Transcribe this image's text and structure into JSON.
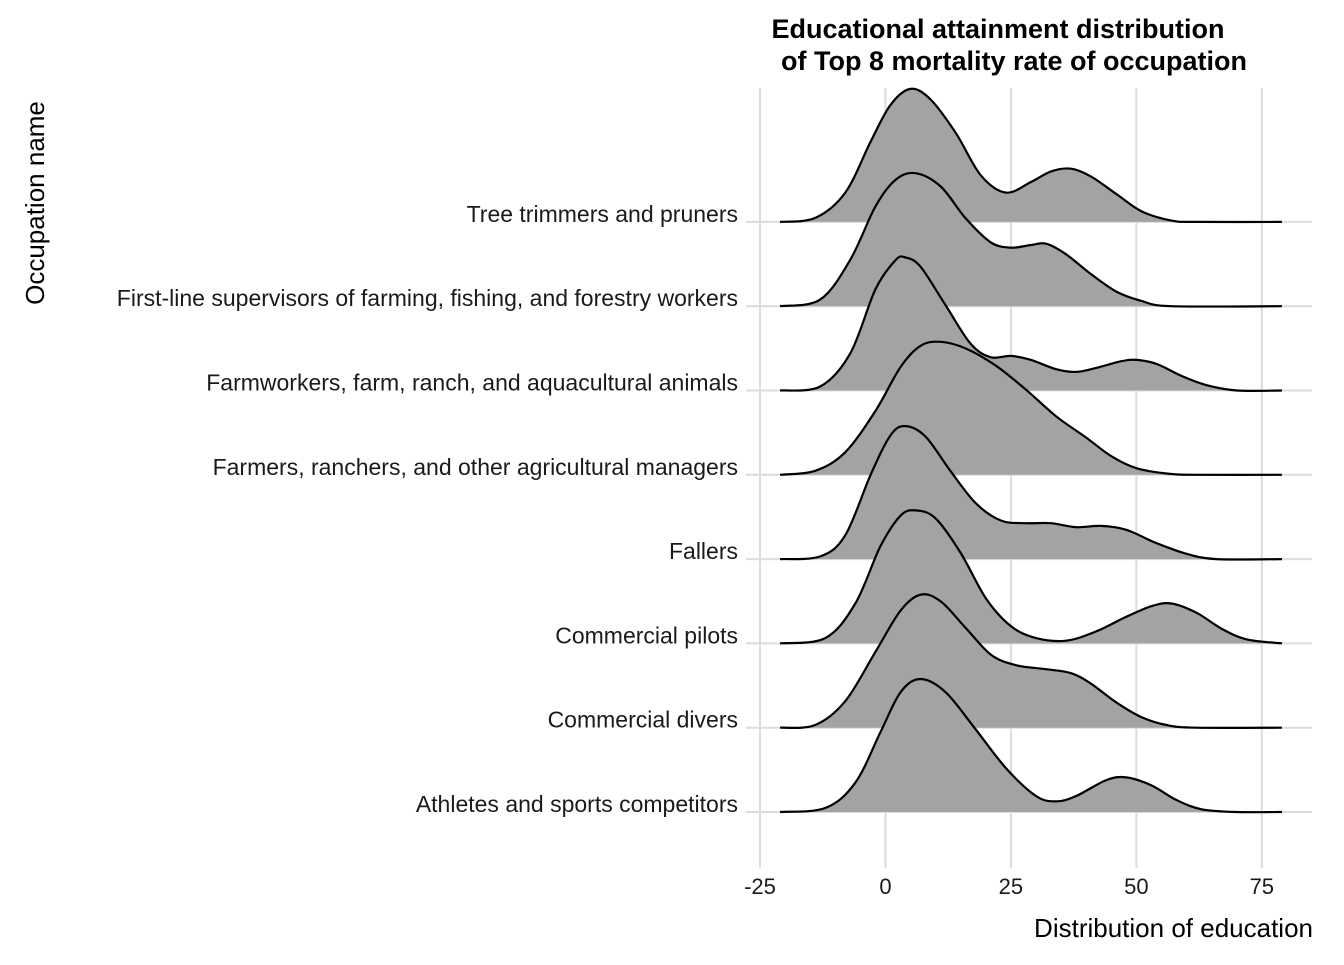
{
  "chart_data": {
    "type": "ridgeline",
    "title_lines": [
      "Educational attainment distribution",
      "of Top 8 mortality rate of occupation"
    ],
    "xlabel": "Distribution of education",
    "ylabel": "Occupation name",
    "xlim": [
      -25,
      85
    ],
    "x_ticks": [
      -25,
      0,
      25,
      50,
      75
    ],
    "x_tick_labels": [
      "-25",
      "0",
      "25",
      "50",
      "75"
    ],
    "density_range": [
      -21,
      79
    ],
    "fill_color": "#a3a3a3",
    "line_color": "#000000",
    "grid": true,
    "categories": [
      "Athletes and sports competitors",
      "Commercial divers",
      "Commercial pilots",
      "Fallers",
      "Farmers, ranchers, and other agricultural managers",
      "Farmworkers, farm, ranch, and aquacultural animals",
      "First-line supervisors of farming, fishing, and forestry workers",
      "Tree trimmers and pruners"
    ],
    "series": [
      {
        "category": "Athletes and sports competitors",
        "density_points": [
          [
            -21,
            0
          ],
          [
            -12,
            0.03
          ],
          [
            -6,
            0.22
          ],
          [
            -1,
            0.6
          ],
          [
            3,
            0.9
          ],
          [
            7,
            1.0
          ],
          [
            12,
            0.9
          ],
          [
            18,
            0.62
          ],
          [
            24,
            0.33
          ],
          [
            30,
            0.12
          ],
          [
            34,
            0.08
          ],
          [
            38,
            0.12
          ],
          [
            44,
            0.24
          ],
          [
            48,
            0.26
          ],
          [
            53,
            0.2
          ],
          [
            58,
            0.09
          ],
          [
            63,
            0.02
          ],
          [
            70,
            0
          ],
          [
            79,
            0
          ]
        ]
      },
      {
        "category": "Commercial divers",
        "density_points": [
          [
            -21,
            0
          ],
          [
            -14,
            0.02
          ],
          [
            -8,
            0.2
          ],
          [
            -2,
            0.57
          ],
          [
            3,
            0.88
          ],
          [
            7,
            1.0
          ],
          [
            11,
            0.95
          ],
          [
            16,
            0.75
          ],
          [
            21,
            0.55
          ],
          [
            26,
            0.47
          ],
          [
            32,
            0.44
          ],
          [
            37,
            0.41
          ],
          [
            41,
            0.33
          ],
          [
            46,
            0.19
          ],
          [
            51,
            0.08
          ],
          [
            56,
            0.02
          ],
          [
            62,
            0
          ],
          [
            79,
            0
          ]
        ]
      },
      {
        "category": "Commercial pilots",
        "density_points": [
          [
            -21,
            0
          ],
          [
            -12,
            0.04
          ],
          [
            -6,
            0.3
          ],
          [
            -1,
            0.73
          ],
          [
            3,
            0.96
          ],
          [
            6,
            1.0
          ],
          [
            10,
            0.94
          ],
          [
            15,
            0.68
          ],
          [
            20,
            0.34
          ],
          [
            25,
            0.13
          ],
          [
            30,
            0.04
          ],
          [
            36,
            0.02
          ],
          [
            42,
            0.09
          ],
          [
            48,
            0.2
          ],
          [
            53,
            0.28
          ],
          [
            57,
            0.3
          ],
          [
            62,
            0.23
          ],
          [
            67,
            0.11
          ],
          [
            72,
            0.03
          ],
          [
            79,
            0
          ]
        ]
      },
      {
        "category": "Fallers",
        "density_points": [
          [
            -21,
            0
          ],
          [
            -13,
            0.02
          ],
          [
            -8,
            0.18
          ],
          [
            -3,
            0.63
          ],
          [
            1,
            0.93
          ],
          [
            4,
            1.0
          ],
          [
            8,
            0.92
          ],
          [
            13,
            0.66
          ],
          [
            18,
            0.42
          ],
          [
            23,
            0.29
          ],
          [
            28,
            0.27
          ],
          [
            33,
            0.27
          ],
          [
            38,
            0.24
          ],
          [
            43,
            0.25
          ],
          [
            48,
            0.22
          ],
          [
            54,
            0.12
          ],
          [
            60,
            0.04
          ],
          [
            66,
            0
          ],
          [
            79,
            0
          ]
        ]
      },
      {
        "category": "Farmers, ranchers, and other agricultural managers",
        "density_points": [
          [
            -21,
            0
          ],
          [
            -14,
            0.03
          ],
          [
            -8,
            0.17
          ],
          [
            -2,
            0.48
          ],
          [
            3,
            0.81
          ],
          [
            7,
            0.97
          ],
          [
            11,
            1.0
          ],
          [
            16,
            0.95
          ],
          [
            22,
            0.82
          ],
          [
            28,
            0.64
          ],
          [
            34,
            0.44
          ],
          [
            40,
            0.28
          ],
          [
            45,
            0.14
          ],
          [
            50,
            0.05
          ],
          [
            56,
            0.01
          ],
          [
            62,
            0
          ],
          [
            79,
            0
          ]
        ]
      },
      {
        "category": "Farmworkers, farm, ranch, and aquacultural animals",
        "density_points": [
          [
            -21,
            0
          ],
          [
            -13,
            0.03
          ],
          [
            -7,
            0.28
          ],
          [
            -2,
            0.76
          ],
          [
            2,
            0.98
          ],
          [
            4,
            1.0
          ],
          [
            7,
            0.93
          ],
          [
            12,
            0.64
          ],
          [
            17,
            0.35
          ],
          [
            21,
            0.25
          ],
          [
            25,
            0.26
          ],
          [
            29,
            0.23
          ],
          [
            34,
            0.16
          ],
          [
            38,
            0.14
          ],
          [
            42,
            0.17
          ],
          [
            47,
            0.22
          ],
          [
            50,
            0.23
          ],
          [
            54,
            0.2
          ],
          [
            59,
            0.11
          ],
          [
            64,
            0.04
          ],
          [
            70,
            0
          ],
          [
            79,
            0
          ]
        ]
      },
      {
        "category": "First-line supervisors of farming, fishing, and forestry workers",
        "density_points": [
          [
            -21,
            0
          ],
          [
            -13,
            0.05
          ],
          [
            -7,
            0.35
          ],
          [
            -2,
            0.75
          ],
          [
            2,
            0.95
          ],
          [
            6,
            1.0
          ],
          [
            11,
            0.9
          ],
          [
            16,
            0.66
          ],
          [
            21,
            0.48
          ],
          [
            25,
            0.44
          ],
          [
            29,
            0.46
          ],
          [
            32,
            0.47
          ],
          [
            36,
            0.39
          ],
          [
            41,
            0.24
          ],
          [
            46,
            0.11
          ],
          [
            51,
            0.04
          ],
          [
            57,
            0
          ],
          [
            79,
            0
          ]
        ]
      },
      {
        "category": "Tree trimmers and pruners",
        "density_points": [
          [
            -21,
            0
          ],
          [
            -14,
            0.03
          ],
          [
            -8,
            0.22
          ],
          [
            -3,
            0.6
          ],
          [
            1,
            0.88
          ],
          [
            5,
            1.0
          ],
          [
            9,
            0.92
          ],
          [
            14,
            0.67
          ],
          [
            19,
            0.35
          ],
          [
            24,
            0.22
          ],
          [
            29,
            0.3
          ],
          [
            33,
            0.38
          ],
          [
            37,
            0.4
          ],
          [
            41,
            0.34
          ],
          [
            46,
            0.21
          ],
          [
            51,
            0.08
          ],
          [
            57,
            0.01
          ],
          [
            62,
            0
          ],
          [
            79,
            0
          ]
        ]
      }
    ]
  }
}
